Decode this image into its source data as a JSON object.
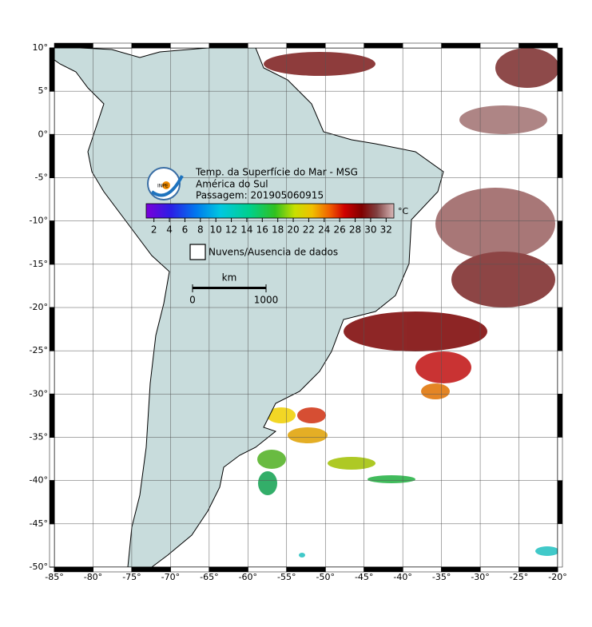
{
  "map": {
    "title_lines": [
      "Temp. da Superfície do Mar - MSG",
      "América do Sul",
      "Passagem: 201905060915"
    ],
    "logo": "INPE",
    "colorbar": {
      "unit": "°C",
      "clim": [
        1,
        33
      ],
      "ticks": [
        2,
        4,
        6,
        8,
        10,
        12,
        14,
        16,
        18,
        20,
        22,
        24,
        26,
        28,
        30,
        32
      ]
    },
    "legend": "Nuvens/Ausencia de dados",
    "scale_bar": {
      "unit": "km",
      "ticks": [
        0,
        1000
      ]
    },
    "xlim": [
      -85,
      -20
    ],
    "ylim": [
      -50,
      10
    ],
    "grid": true,
    "xticks": [
      {
        "value": -85,
        "label": "-85°"
      },
      {
        "value": -80,
        "label": "-80°"
      },
      {
        "value": -75,
        "label": "-75°"
      },
      {
        "value": -70,
        "label": "-70°"
      },
      {
        "value": -65,
        "label": "-65°"
      },
      {
        "value": -60,
        "label": "-60°"
      },
      {
        "value": -55,
        "label": "-55°"
      },
      {
        "value": -50,
        "label": "-50°"
      },
      {
        "value": -45,
        "label": "-45°"
      },
      {
        "value": -40,
        "label": "-40°"
      },
      {
        "value": -35,
        "label": "-35°"
      },
      {
        "value": -30,
        "label": "-30°"
      },
      {
        "value": -25,
        "label": "-25°"
      },
      {
        "value": -20,
        "label": "-20°"
      }
    ],
    "yticks": [
      {
        "value": 10,
        "label": "10°"
      },
      {
        "value": 5,
        "label": "5°"
      },
      {
        "value": 0,
        "label": "0°"
      },
      {
        "value": -5,
        "label": "-5°"
      },
      {
        "value": -10,
        "label": "-10°"
      },
      {
        "value": -15,
        "label": "-15°"
      },
      {
        "value": -20,
        "label": "-20°"
      },
      {
        "value": -25,
        "label": "-25°"
      },
      {
        "value": -30,
        "label": "-30°"
      },
      {
        "value": -35,
        "label": "-35°"
      },
      {
        "value": -40,
        "label": "-40°"
      },
      {
        "value": -45,
        "label": "-45°"
      },
      {
        "value": -50,
        "label": "-50°"
      }
    ]
  }
}
